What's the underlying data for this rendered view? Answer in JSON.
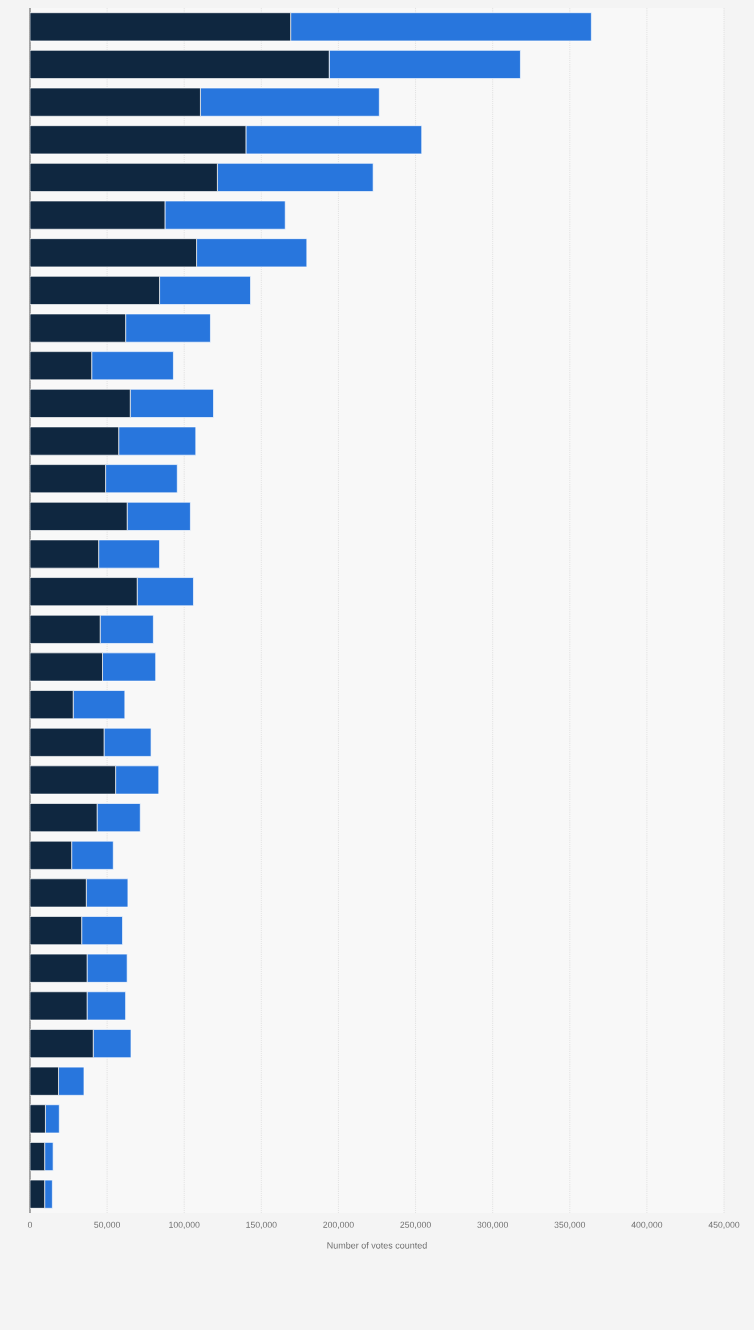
{
  "chart_data": {
    "type": "bar",
    "orientation": "horizontal",
    "stacked": true,
    "xlabel": "Number of votes counted",
    "categories": [
      null,
      null,
      null,
      null,
      null,
      null,
      null,
      null,
      null,
      null,
      null,
      null,
      null,
      null,
      null,
      null,
      null,
      null,
      null,
      null,
      null,
      null,
      null,
      null,
      null,
      null,
      null,
      null,
      null,
      null,
      null,
      null
    ],
    "series": [
      {
        "color": "#0f2740",
        "values": [
          169000,
          194000,
          110500,
          140000,
          121500,
          87500,
          108000,
          84000,
          62000,
          40000,
          65000,
          57500,
          49000,
          63000,
          44500,
          69500,
          45500,
          47000,
          28000,
          48000,
          55500,
          43500,
          27000,
          36500,
          33500,
          37000,
          37000,
          41000,
          18500,
          10000,
          9500,
          9500
        ]
      },
      {
        "color": "#2876dd",
        "values": [
          195000,
          124000,
          116000,
          114000,
          101000,
          78000,
          71500,
          59000,
          55000,
          53000,
          54000,
          50000,
          46500,
          41000,
          39500,
          36500,
          34500,
          34500,
          33500,
          30500,
          28000,
          28000,
          27000,
          27000,
          26500,
          26000,
          25000,
          24500,
          16500,
          9000,
          5500,
          5000
        ]
      }
    ],
    "xlim": [
      0,
      450000
    ],
    "xticks": [
      0,
      {
        "value": 50000,
        "label": "50,000"
      },
      {
        "value": 100000,
        "label": "100,000"
      },
      {
        "value": 150000,
        "label": "150,000"
      },
      {
        "value": 200000,
        "label": "200,000"
      },
      {
        "value": 250000,
        "label": "250,000"
      },
      {
        "value": 300000,
        "label": "300,000"
      },
      {
        "value": 350000,
        "label": "350,000"
      },
      {
        "value": 400000,
        "label": "400,000"
      },
      {
        "value": 450000,
        "label": "450,000"
      }
    ],
    "grid": "x",
    "tick_labels": "x"
  }
}
